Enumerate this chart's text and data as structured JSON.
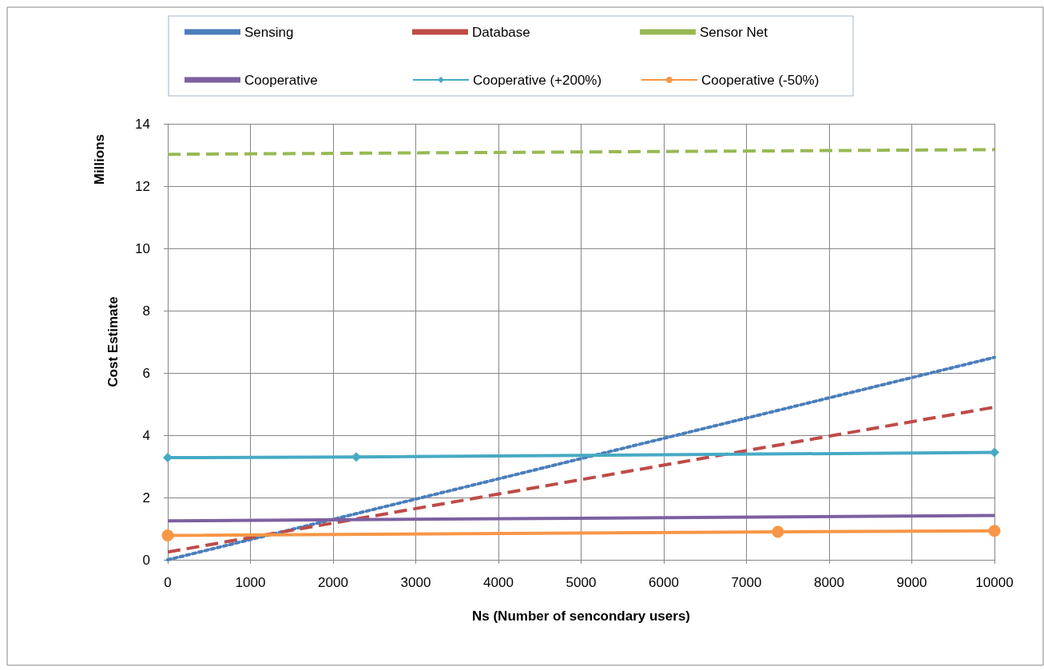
{
  "chart_data": {
    "type": "line",
    "xlabel": "Ns (Number of sencondary users)",
    "ylabel": "Cost Estimate",
    "annotations": [
      "Millions"
    ],
    "xlim": [
      0,
      10000
    ],
    "xticks": [
      0,
      1000,
      2000,
      3000,
      4000,
      5000,
      6000,
      7000,
      8000,
      9000,
      10000
    ],
    "ylim": [
      0,
      14
    ],
    "yticks": [
      0,
      2,
      4,
      6,
      8,
      10,
      12,
      14
    ],
    "grid": true,
    "legend": "top",
    "series": [
      {
        "name": "Sensing",
        "color": "#4a7ebb",
        "line_style": "dotted",
        "marker": "none",
        "x": [
          0,
          10000
        ],
        "values": [
          0,
          6.5
        ]
      },
      {
        "name": "Database",
        "color": "#be4b48",
        "line_style": "dashed",
        "marker": "none",
        "x": [
          0,
          10000
        ],
        "values": [
          0.25,
          4.9
        ]
      },
      {
        "name": "Sensor Net",
        "color": "#98b954",
        "line_style": "dashed",
        "marker": "none",
        "x": [
          0,
          10000
        ],
        "values": [
          13.02,
          13.17
        ]
      },
      {
        "name": "Cooperative",
        "color": "#7d60a0",
        "line_style": "solid",
        "marker": "none",
        "x": [
          0,
          10000
        ],
        "values": [
          1.25,
          1.42
        ]
      },
      {
        "name": "Cooperative (+200%)",
        "color": "#46aac5",
        "line_style": "solid",
        "marker": "diamond",
        "x": [
          0,
          2280,
          10000
        ],
        "values": [
          3.28,
          3.3,
          3.45
        ]
      },
      {
        "name": "Cooperative (-50%)",
        "color": "#f79646",
        "line_style": "solid",
        "marker": "circle",
        "x": [
          0,
          7380,
          10000
        ],
        "values": [
          0.78,
          0.9,
          0.93
        ]
      }
    ]
  }
}
